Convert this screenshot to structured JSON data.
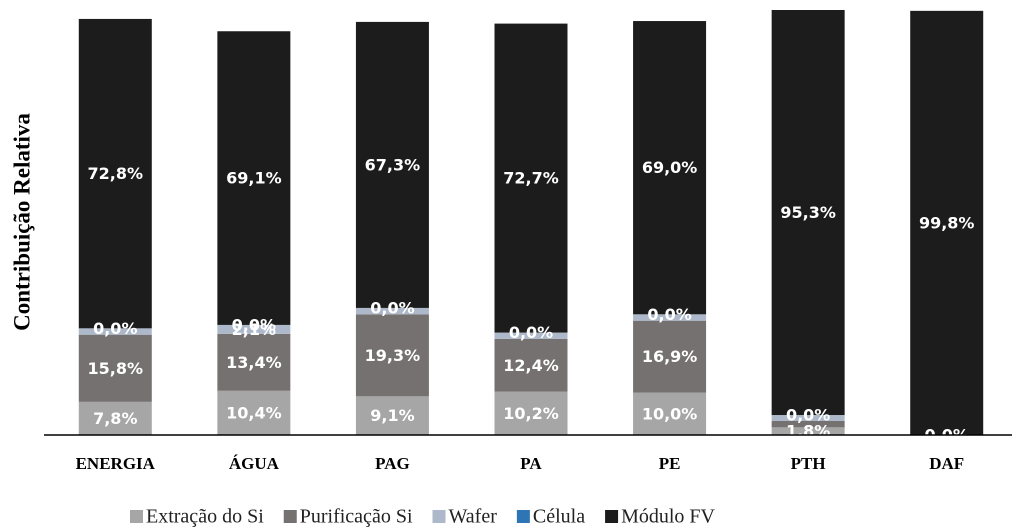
{
  "chart_data": {
    "type": "bar",
    "stacked": true,
    "y_axis_label": "Contribuição Relativa",
    "categories": [
      "ENERGIA",
      "ÁGUA",
      "PAG",
      "PA",
      "PE",
      "PTH",
      "DAF"
    ],
    "ylim": [
      0,
      100
    ],
    "series": [
      {
        "name": "Extração do Si",
        "color": "#a6a6a6",
        "values": [
          7.8,
          10.4,
          9.1,
          10.2,
          10.0,
          1.8,
          0
        ],
        "value_labels": [
          "7,8%",
          "10,4%",
          "9,1%",
          "10,2%",
          "10,0%",
          "1,8%",
          null
        ]
      },
      {
        "name": "Purificação Si",
        "color": "#767171",
        "values": [
          15.8,
          13.4,
          19.3,
          12.4,
          16.9,
          1.5,
          0
        ],
        "value_labels": [
          "15,8%",
          "13,4%",
          "19,3%",
          "12,4%",
          "16,9%",
          null,
          null
        ]
      },
      {
        "name": "Wafer",
        "color": "#adb9ca",
        "values": [
          1.5,
          2.1,
          1.5,
          1.5,
          1.5,
          1.4,
          0
        ],
        "value_labels": [
          null,
          "2,1%",
          null,
          null,
          null,
          null,
          null
        ]
      },
      {
        "name": "Célula",
        "color": "#2e75b6",
        "values": [
          0.0,
          0.0,
          0.0,
          0.0,
          0.0,
          0.0,
          0.0
        ],
        "value_labels": [
          "0,0%",
          "0,0%",
          "0,0%",
          "0,0%",
          "0,0%",
          "0,0%",
          "0,0%"
        ]
      },
      {
        "name": "Módulo FV",
        "color": "#1c1c1c",
        "values": [
          72.8,
          69.1,
          67.3,
          72.7,
          69.0,
          95.3,
          99.8
        ],
        "value_labels": [
          "72,8%",
          "69,1%",
          "67,3%",
          "72,7%",
          "69,0%",
          "95,3%",
          "99,8%"
        ]
      }
    ]
  }
}
